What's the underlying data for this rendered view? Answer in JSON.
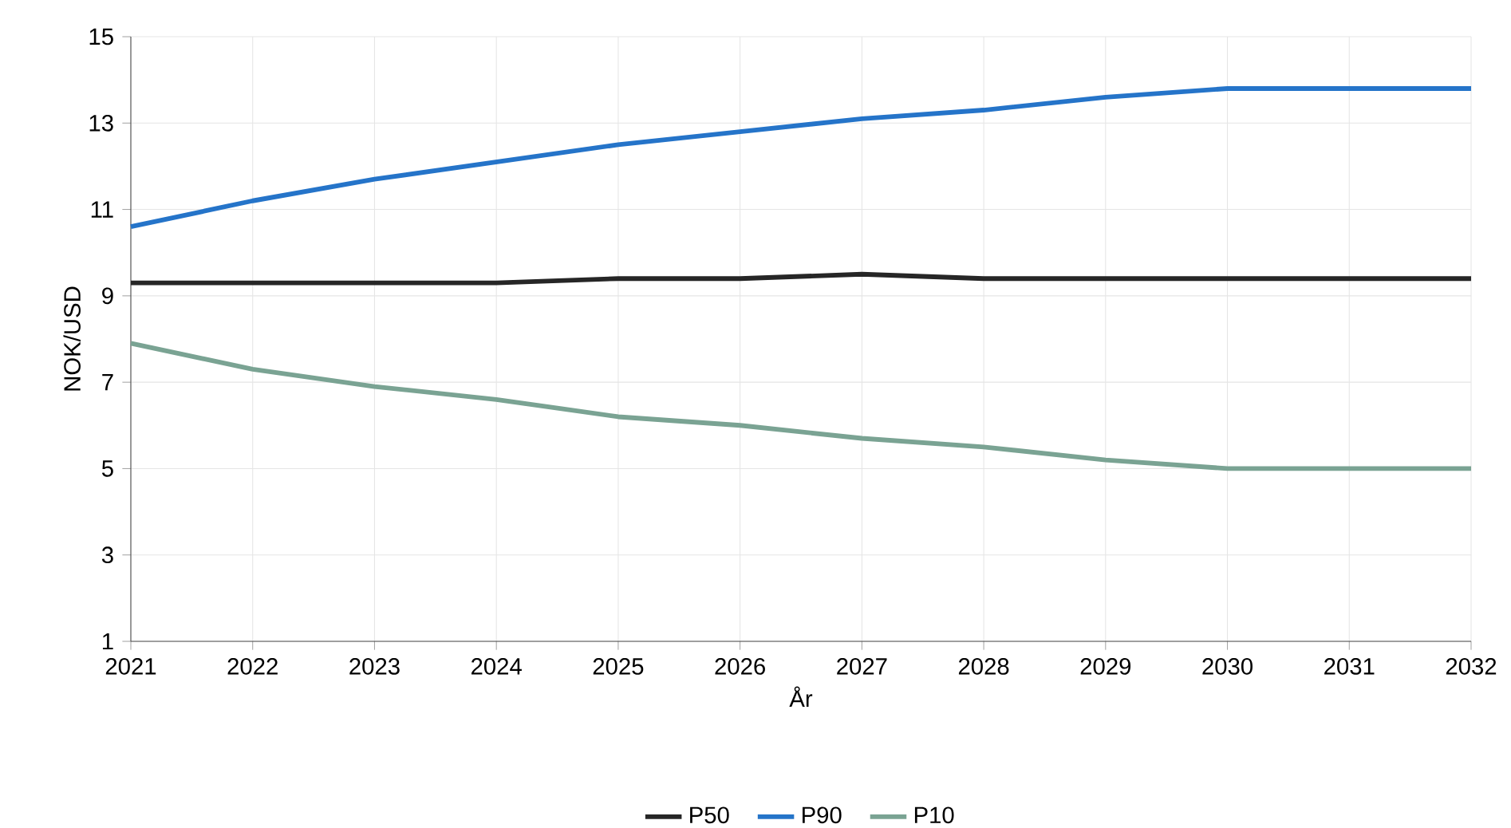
{
  "chart_data": {
    "type": "line",
    "xlabel": "År",
    "ylabel": "NOK/USD",
    "x": [
      2021,
      2022,
      2023,
      2024,
      2025,
      2026,
      2027,
      2028,
      2029,
      2030,
      2031,
      2032
    ],
    "series": [
      {
        "name": "P50",
        "color": "#262626",
        "values": [
          9.3,
          9.3,
          9.3,
          9.3,
          9.4,
          9.4,
          9.5,
          9.4,
          9.4,
          9.4,
          9.4,
          9.4
        ]
      },
      {
        "name": "P90",
        "color": "#2574c9",
        "values": [
          10.6,
          11.2,
          11.7,
          12.1,
          12.5,
          12.8,
          13.1,
          13.3,
          13.6,
          13.8,
          13.8,
          13.8
        ]
      },
      {
        "name": "P10",
        "color": "#7aa393",
        "values": [
          7.9,
          7.3,
          6.9,
          6.6,
          6.2,
          6.0,
          5.7,
          5.5,
          5.2,
          5.0,
          5.0,
          5.0
        ]
      }
    ],
    "xlim": [
      2021,
      2032
    ],
    "ylim": [
      1,
      15
    ],
    "xticks": [
      2021,
      2022,
      2023,
      2024,
      2025,
      2026,
      2027,
      2028,
      2029,
      2030,
      2031,
      2032
    ],
    "yticks": [
      1,
      3,
      5,
      7,
      9,
      11,
      13,
      15
    ],
    "grid": true,
    "legend": "bottom",
    "marker": "none",
    "line_style": "solid"
  }
}
